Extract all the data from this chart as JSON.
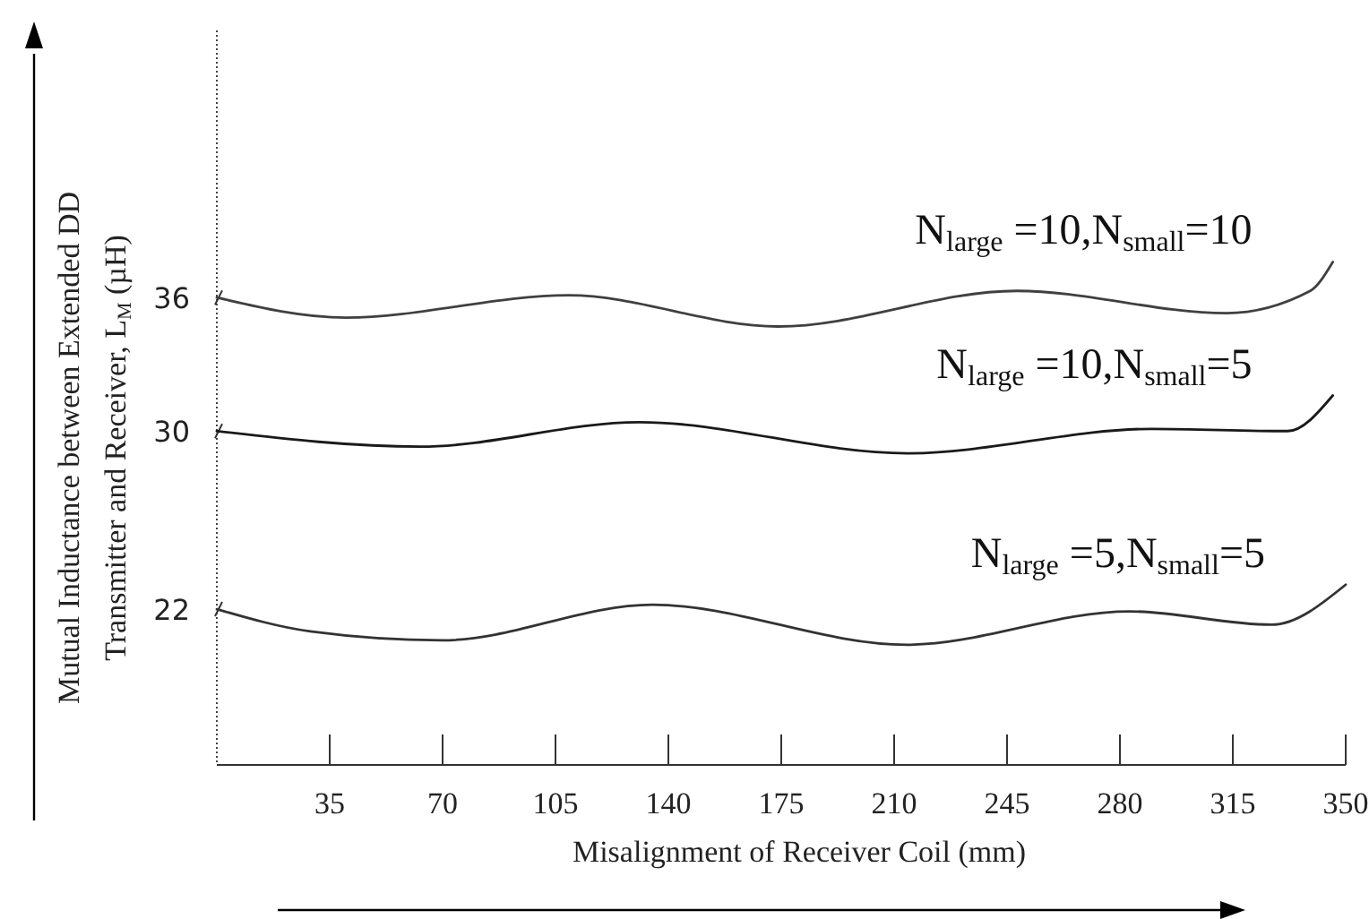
{
  "chart_data": {
    "type": "line",
    "xlabel": "Misalignment of Receiver Coil (mm)",
    "ylabel": "Mutual Inductance between Extended DD\nTransmitter and Receiver, L$_{M}$ (µH)",
    "xlim": [
      0,
      350
    ],
    "xticks": [
      35,
      70,
      105,
      140,
      175,
      210,
      245,
      280,
      315,
      350
    ],
    "ylim": [
      15,
      48
    ],
    "yticks": [
      22,
      30,
      36
    ],
    "grid": false,
    "legend": false,
    "marker": "none",
    "line_style": "solid",
    "series": [
      {
        "name": "N$_{large}$ =10,N$_{small}$=10",
        "color": "#404040",
        "x": [
          0,
          40,
          109,
          174,
          248,
          313,
          339,
          346
        ],
        "values": [
          36.0,
          35.1,
          36.1,
          34.7,
          36.3,
          35.3,
          36.3,
          37.6
        ]
      },
      {
        "name": "N$_{large}$ =10,N$_{small}$=5",
        "color": "#1a1a1a",
        "x": [
          0,
          63,
          131,
          214,
          290,
          332,
          346
        ],
        "values": [
          30.0,
          29.3,
          30.4,
          29.0,
          30.1,
          30.0,
          31.6
        ]
      },
      {
        "name": "N$_{large}$ =5,N$_{small}$=5",
        "color": "#333333",
        "x": [
          0,
          29,
          70,
          135,
          214,
          283,
          327,
          350
        ],
        "values": [
          22.0,
          21.0,
          20.6,
          22.2,
          20.4,
          21.9,
          21.3,
          23.1
        ]
      }
    ]
  }
}
